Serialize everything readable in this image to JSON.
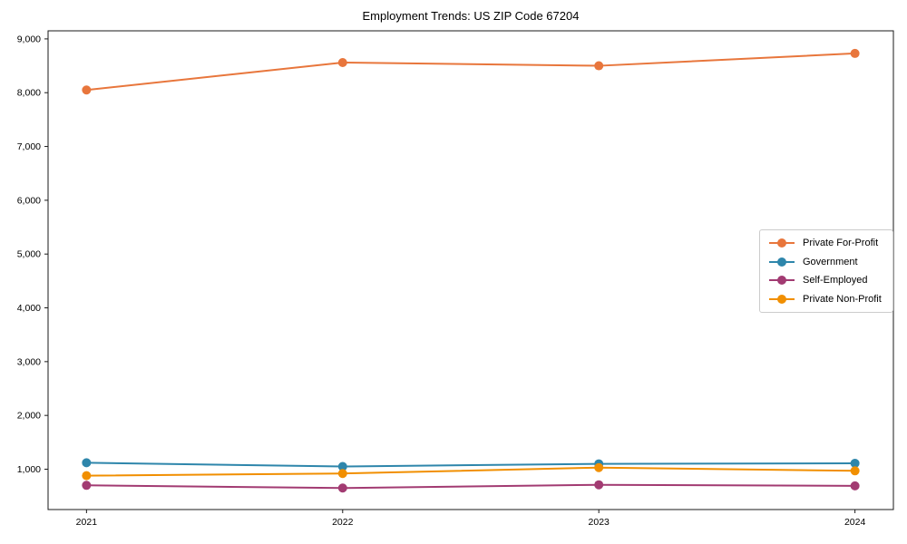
{
  "chart_data": {
    "type": "line",
    "title": "Employment Trends: US ZIP Code 67204",
    "xlabel": "",
    "ylabel": "",
    "x": [
      2021,
      2022,
      2023,
      2024
    ],
    "x_tick_labels": [
      "2021",
      "2022",
      "2023",
      "2024"
    ],
    "y_ticks": [
      1000,
      2000,
      3000,
      4000,
      5000,
      6000,
      7000,
      8000,
      9000
    ],
    "y_tick_labels": [
      "1,000",
      "2,000",
      "3,000",
      "4,000",
      "5,000",
      "6,000",
      "7,000",
      "8,000",
      "9,000"
    ],
    "xlim": [
      2020.85,
      2024.15
    ],
    "ylim": [
      250,
      9150
    ],
    "grid": false,
    "legend_position": "center-right",
    "marker": "circle",
    "axis_color": "#1a1a1a",
    "series": [
      {
        "name": "Private For-Profit",
        "color": "#E8763C",
        "values": [
          8050,
          8560,
          8500,
          8730
        ]
      },
      {
        "name": "Government",
        "color": "#2E86AB",
        "values": [
          1120,
          1050,
          1100,
          1110
        ]
      },
      {
        "name": "Self-Employed",
        "color": "#A23B72",
        "values": [
          700,
          650,
          710,
          690
        ]
      },
      {
        "name": "Private Non-Profit",
        "color": "#F18F01",
        "values": [
          880,
          920,
          1030,
          970
        ]
      }
    ]
  }
}
